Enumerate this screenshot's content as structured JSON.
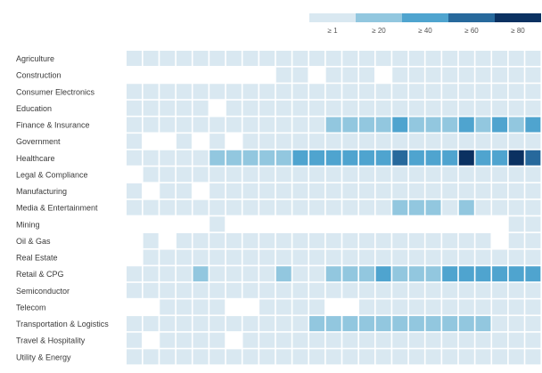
{
  "chart_data": {
    "type": "heatmap",
    "title": "",
    "xlabel": "",
    "ylabel": "",
    "legend": {
      "placement": "top-right",
      "bins": [
        {
          "label": "≥ 1",
          "min": 1,
          "color": "#d9e8f1"
        },
        {
          "label": "≥ 20",
          "min": 20,
          "color": "#92c7df"
        },
        {
          "label": "≥ 40",
          "min": 40,
          "color": "#4fa4cf"
        },
        {
          "label": "≥ 60",
          "min": 60,
          "color": "#27699c"
        },
        {
          "label": "≥ 80",
          "min": 80,
          "color": "#0b3161"
        }
      ]
    },
    "empty_color": "#ffffff",
    "grid": false,
    "columns_count_visible": 25,
    "rows": [
      {
        "name": "Agriculture",
        "values": [
          8,
          8,
          8,
          8,
          8,
          8,
          8,
          8,
          8,
          8,
          8,
          8,
          8,
          8,
          8,
          8,
          8,
          8,
          8,
          8,
          8,
          8,
          8,
          8,
          14
        ]
      },
      {
        "name": "Construction",
        "values": [
          0,
          0,
          0,
          0,
          0,
          0,
          0,
          0,
          0,
          14,
          8,
          0,
          8,
          8,
          8,
          0,
          8,
          8,
          8,
          8,
          8,
          8,
          8,
          8,
          8
        ]
      },
      {
        "name": "Consumer Electronics",
        "values": [
          8,
          8,
          8,
          14,
          14,
          8,
          8,
          8,
          8,
          8,
          8,
          8,
          8,
          8,
          8,
          8,
          14,
          14,
          14,
          14,
          14,
          14,
          14,
          14,
          14
        ]
      },
      {
        "name": "Education",
        "values": [
          8,
          8,
          8,
          8,
          8,
          0,
          8,
          8,
          8,
          8,
          8,
          8,
          8,
          8,
          8,
          8,
          8,
          8,
          8,
          8,
          18,
          8,
          8,
          14,
          8
        ]
      },
      {
        "name": "Finance & Insurance",
        "values": [
          8,
          14,
          8,
          8,
          8,
          18,
          14,
          8,
          14,
          18,
          14,
          18,
          24,
          30,
          26,
          26,
          44,
          30,
          30,
          30,
          40,
          30,
          40,
          30,
          48
        ]
      },
      {
        "name": "Government",
        "values": [
          8,
          0,
          0,
          8,
          0,
          8,
          0,
          8,
          8,
          8,
          8,
          8,
          8,
          8,
          8,
          8,
          14,
          14,
          14,
          14,
          14,
          14,
          14,
          14,
          14
        ]
      },
      {
        "name": "Healthcare",
        "values": [
          14,
          18,
          18,
          18,
          18,
          24,
          24,
          24,
          30,
          36,
          44,
          44,
          44,
          44,
          44,
          44,
          62,
          44,
          52,
          44,
          88,
          44,
          52,
          88,
          62
        ]
      },
      {
        "name": "Legal & Compliance",
        "values": [
          0,
          8,
          8,
          8,
          8,
          8,
          8,
          8,
          8,
          8,
          8,
          8,
          8,
          14,
          8,
          8,
          14,
          14,
          18,
          8,
          8,
          8,
          8,
          8,
          8
        ]
      },
      {
        "name": "Manufacturing",
        "values": [
          8,
          0,
          8,
          8,
          0,
          8,
          8,
          8,
          8,
          8,
          8,
          8,
          8,
          8,
          14,
          8,
          8,
          14,
          14,
          8,
          8,
          8,
          8,
          8,
          8
        ]
      },
      {
        "name": "Media & Entertainment",
        "values": [
          8,
          8,
          8,
          8,
          8,
          8,
          8,
          8,
          14,
          18,
          14,
          14,
          14,
          14,
          14,
          18,
          24,
          24,
          24,
          18,
          24,
          18,
          14,
          14,
          14
        ]
      },
      {
        "name": "Mining",
        "values": [
          0,
          0,
          0,
          0,
          0,
          8,
          0,
          0,
          0,
          0,
          0,
          0,
          0,
          0,
          0,
          0,
          0,
          0,
          0,
          0,
          0,
          0,
          0,
          8,
          8
        ]
      },
      {
        "name": "Oil & Gas",
        "values": [
          0,
          8,
          0,
          8,
          8,
          8,
          8,
          8,
          8,
          8,
          8,
          8,
          8,
          8,
          8,
          8,
          8,
          8,
          8,
          8,
          8,
          8,
          0,
          8,
          8
        ]
      },
      {
        "name": "Real Estate",
        "values": [
          0,
          8,
          8,
          8,
          8,
          8,
          8,
          8,
          8,
          8,
          8,
          8,
          8,
          8,
          8,
          8,
          8,
          8,
          8,
          8,
          8,
          8,
          8,
          8,
          8
        ]
      },
      {
        "name": "Retail & CPG",
        "values": [
          14,
          18,
          14,
          14,
          24,
          18,
          18,
          14,
          14,
          24,
          18,
          18,
          24,
          24,
          26,
          44,
          30,
          30,
          30,
          44,
          44,
          44,
          44,
          44,
          44
        ]
      },
      {
        "name": "Semiconductor",
        "values": [
          8,
          8,
          8,
          8,
          8,
          8,
          8,
          8,
          8,
          8,
          8,
          14,
          8,
          8,
          8,
          8,
          8,
          14,
          14,
          14,
          14,
          14,
          14,
          14,
          14
        ]
      },
      {
        "name": "Telecom",
        "values": [
          0,
          0,
          8,
          8,
          8,
          8,
          0,
          0,
          8,
          8,
          8,
          8,
          0,
          0,
          8,
          8,
          8,
          8,
          8,
          8,
          8,
          8,
          8,
          8,
          8
        ]
      },
      {
        "name": "Transportation & Logistics",
        "values": [
          8,
          8,
          8,
          14,
          14,
          14,
          14,
          14,
          14,
          14,
          18,
          24,
          24,
          24,
          24,
          30,
          30,
          30,
          24,
          24,
          24,
          24,
          14,
          14,
          14
        ]
      },
      {
        "name": "Travel & Hospitality",
        "values": [
          8,
          0,
          8,
          8,
          8,
          8,
          0,
          8,
          8,
          8,
          8,
          8,
          8,
          8,
          8,
          8,
          8,
          8,
          8,
          8,
          8,
          8,
          8,
          8,
          8
        ]
      },
      {
        "name": "Utility & Energy",
        "values": [
          8,
          8,
          8,
          8,
          8,
          8,
          8,
          8,
          8,
          8,
          8,
          8,
          8,
          8,
          8,
          8,
          8,
          8,
          8,
          8,
          8,
          8,
          8,
          8,
          8
        ]
      }
    ]
  }
}
